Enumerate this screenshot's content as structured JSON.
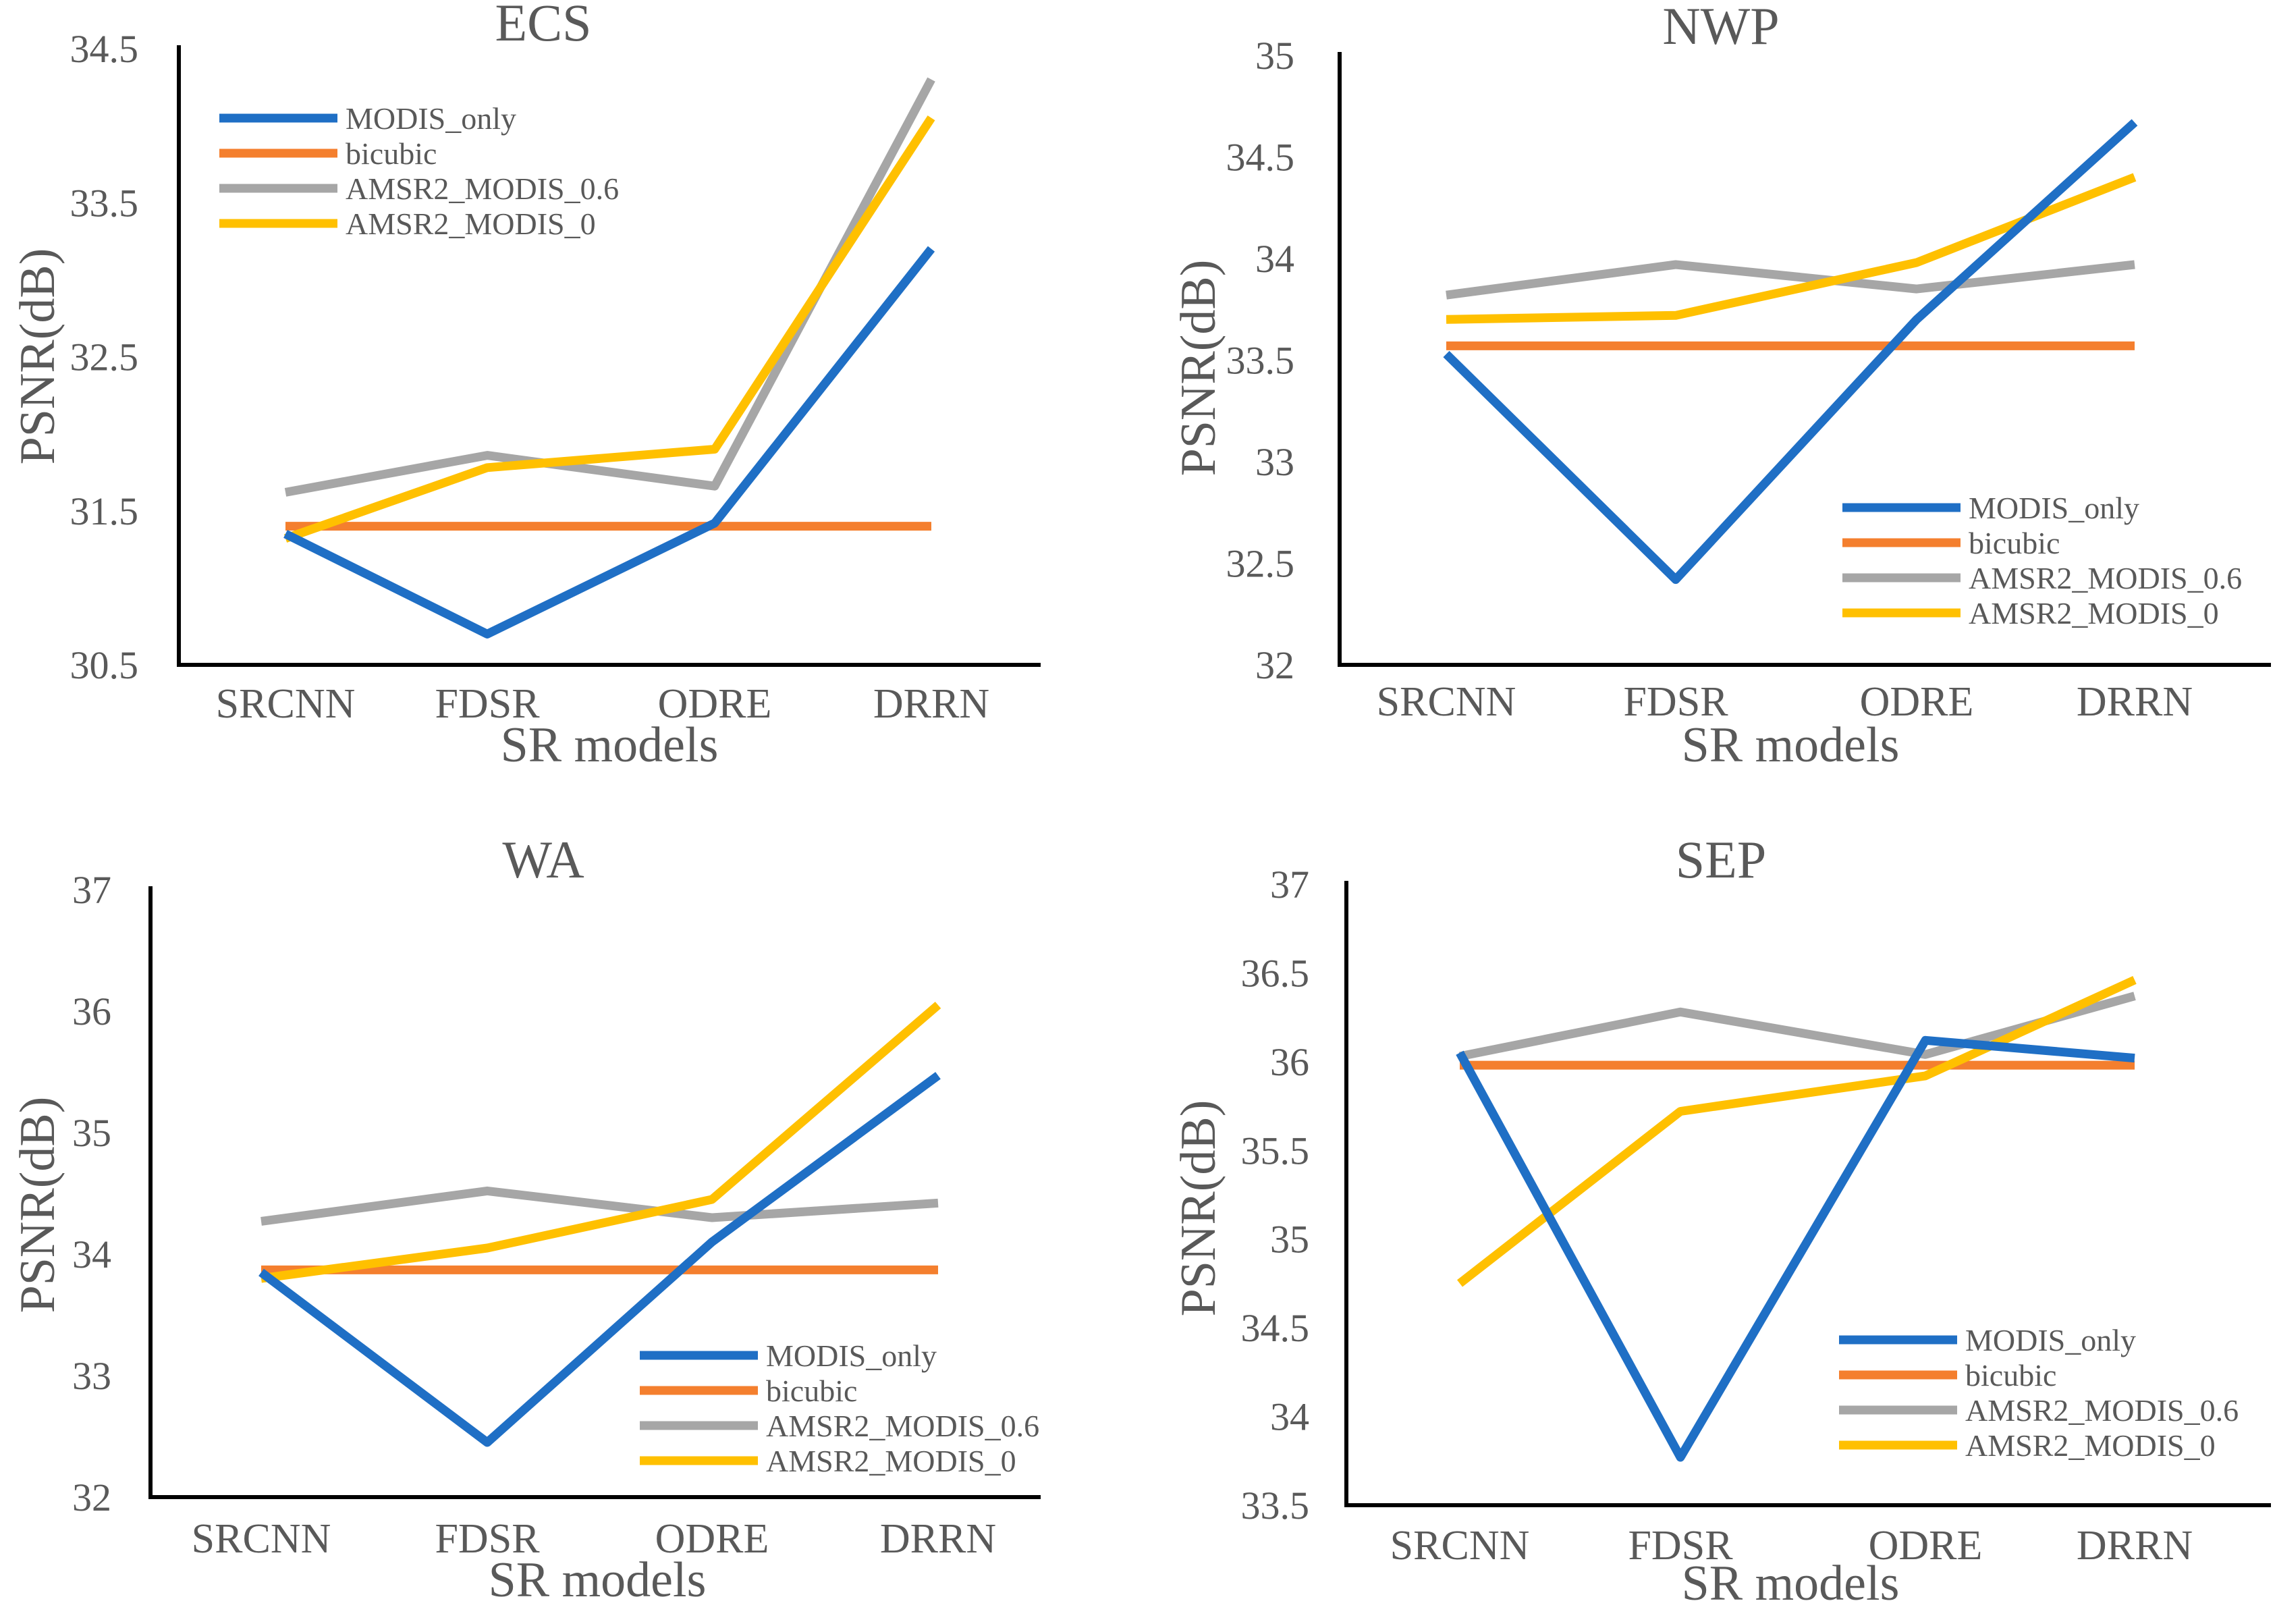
{
  "chart_data": [
    {
      "type": "line",
      "title": "ECS",
      "xlabel": "SR models",
      "ylabel": "PSNR(dB)",
      "categories": [
        "SRCNN",
        "FDSR",
        "ODRE",
        "DRRN"
      ],
      "yticks": [
        "30.5",
        "31.5",
        "32.5",
        "33.5",
        "34.5"
      ],
      "ylim": [
        30.5,
        34.5
      ],
      "grid": false,
      "legend_position": "top-left",
      "series": [
        {
          "name": "MODIS_only",
          "color": "#1F6FC5",
          "values": [
            31.35,
            30.7,
            31.42,
            33.2
          ]
        },
        {
          "name": "bicubic",
          "color": "#F47F2E",
          "values": [
            31.4,
            31.4,
            31.4,
            31.4
          ]
        },
        {
          "name": "AMSR2_MODIS_0.6",
          "color": "#A6A6A6",
          "values": [
            31.62,
            31.86,
            31.66,
            34.3
          ]
        },
        {
          "name": "AMSR2_MODIS_0",
          "color": "#FFC000",
          "values": [
            31.32,
            31.78,
            31.9,
            34.05
          ]
        }
      ]
    },
    {
      "type": "line",
      "title": "NWP",
      "xlabel": "SR models",
      "ylabel": "PSNR(dB)",
      "categories": [
        "SRCNN",
        "FDSR",
        "ODRE",
        "DRRN"
      ],
      "yticks": [
        "32",
        "32.5",
        "33",
        "33.5",
        "34",
        "34.5",
        "35"
      ],
      "ylim": [
        32,
        35
      ],
      "grid": false,
      "legend_position": "bottom-right",
      "series": [
        {
          "name": "MODIS_only",
          "color": "#1F6FC5",
          "values": [
            33.53,
            32.42,
            33.7,
            34.67
          ]
        },
        {
          "name": "bicubic",
          "color": "#F47F2E",
          "values": [
            33.57,
            33.57,
            33.57,
            33.57
          ]
        },
        {
          "name": "AMSR2_MODIS_0.6",
          "color": "#A6A6A6",
          "values": [
            33.82,
            33.97,
            33.85,
            33.97
          ]
        },
        {
          "name": "AMSR2_MODIS_0",
          "color": "#FFC000",
          "values": [
            33.7,
            33.72,
            33.98,
            34.4
          ]
        }
      ]
    },
    {
      "type": "line",
      "title": "WA",
      "xlabel": "SR models",
      "ylabel": "PSNR(dB)",
      "categories": [
        "SRCNN",
        "FDSR",
        "ODRE",
        "DRRN"
      ],
      "yticks": [
        "32",
        "33",
        "34",
        "35",
        "36",
        "37"
      ],
      "ylim": [
        32,
        37
      ],
      "grid": false,
      "legend_position": "bottom-right",
      "series": [
        {
          "name": "MODIS_only",
          "color": "#1F6FC5",
          "values": [
            33.85,
            32.45,
            34.1,
            35.47
          ]
        },
        {
          "name": "bicubic",
          "color": "#F47F2E",
          "values": [
            33.87,
            33.87,
            33.87,
            33.87
          ]
        },
        {
          "name": "AMSR2_MODIS_0.6",
          "color": "#A6A6A6",
          "values": [
            34.27,
            34.52,
            34.3,
            34.42
          ]
        },
        {
          "name": "AMSR2_MODIS_0",
          "color": "#FFC000",
          "values": [
            33.8,
            34.05,
            34.45,
            36.05
          ]
        }
      ]
    },
    {
      "type": "line",
      "title": "SEP",
      "xlabel": "SR models",
      "ylabel": "PSNR(dB)",
      "categories": [
        "SRCNN",
        "FDSR",
        "ODRE",
        "DRRN"
      ],
      "yticks": [
        "33.5",
        "34",
        "34.5",
        "35",
        "35.5",
        "36",
        "36.5",
        "37"
      ],
      "ylim": [
        33.5,
        37
      ],
      "grid": false,
      "legend_position": "bottom-right",
      "series": [
        {
          "name": "MODIS_only",
          "color": "#1F6FC5",
          "values": [
            36.05,
            33.77,
            36.12,
            36.02
          ]
        },
        {
          "name": "bicubic",
          "color": "#F47F2E",
          "values": [
            35.98,
            35.98,
            35.98,
            35.98
          ]
        },
        {
          "name": "AMSR2_MODIS_0.6",
          "color": "#A6A6A6",
          "values": [
            36.03,
            36.28,
            36.04,
            36.37
          ]
        },
        {
          "name": "AMSR2_MODIS_0",
          "color": "#FFC000",
          "values": [
            34.75,
            35.72,
            35.92,
            36.46
          ]
        }
      ]
    }
  ]
}
